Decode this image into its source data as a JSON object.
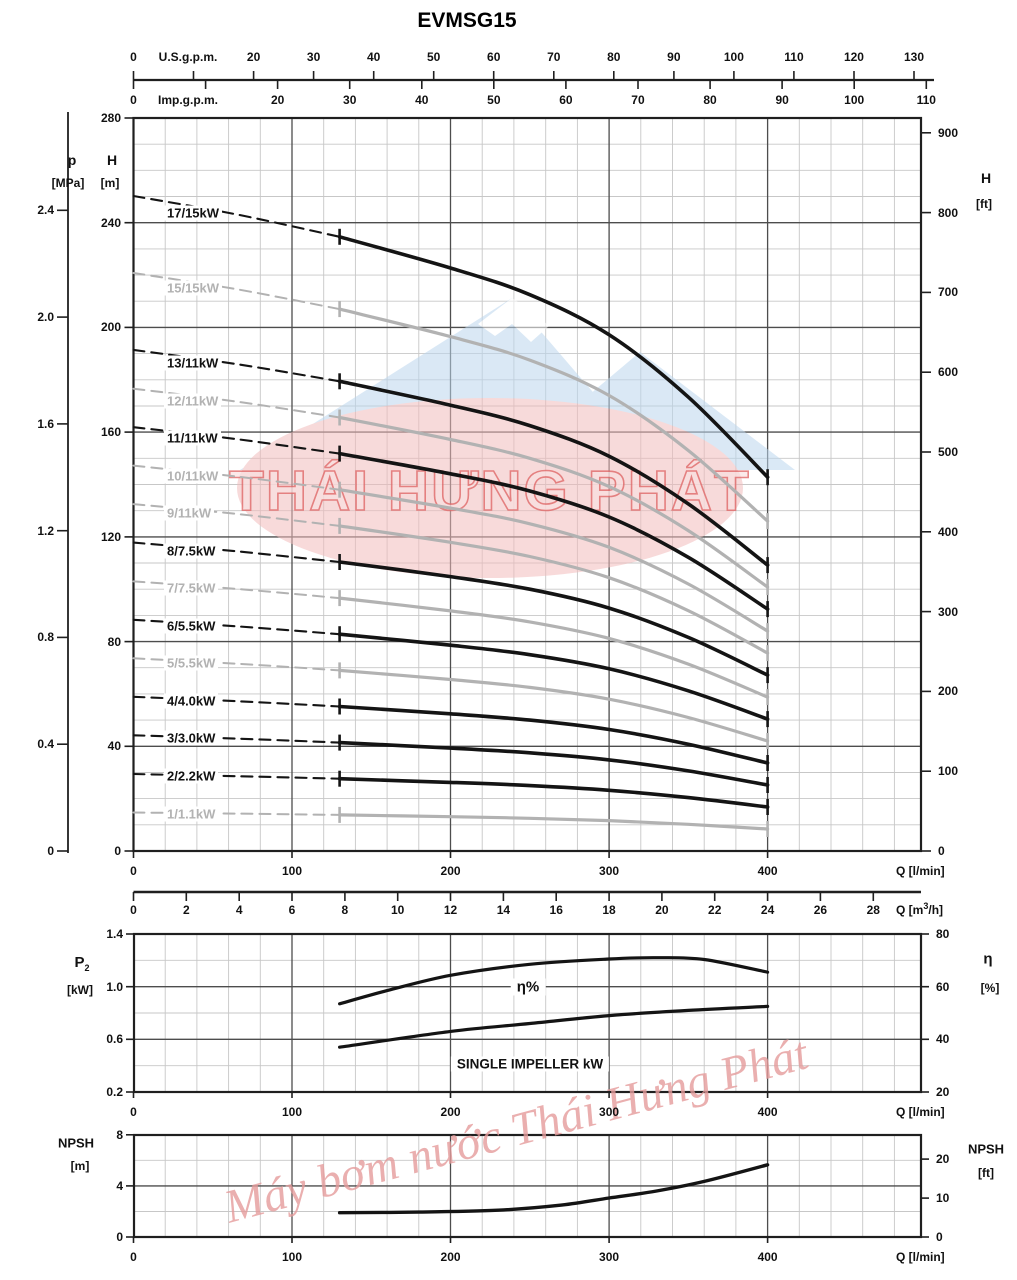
{
  "title": "EVMSG15",
  "axes_labels": {
    "p_sym": "p",
    "p_unit": "[MPa]",
    "h_left_sym": "H",
    "h_left_unit": "[m]",
    "h_right_sym": "H",
    "h_right_unit": "[ft]",
    "p2_sym": "P",
    "p2_sub": "2",
    "p2_unit": "[kW]",
    "eta_sym": "η",
    "eta_unit": "[%]",
    "npsh_left_sym": "NPSH",
    "npsh_left_unit": "[m]",
    "npsh_right_sym": "NPSH",
    "npsh_right_unit": "[ft]",
    "q_lmin": "Q [l/min]",
    "q_m3h_pre": "Q [m",
    "q_m3h_sup": "3",
    "q_m3h_post": "/h]",
    "usgpm": "U.S.g.p.m.",
    "impgpm": "Imp.g.p.m."
  },
  "in_chart_labels": {
    "eta_pct": "η%",
    "single_impeller": "SINGLE IMPELLER kW"
  },
  "watermark": {
    "band_text": "THÁI HUNG PHÁT",
    "band_text_display": "THÁI HƯNG PHÁT",
    "script_text": "Máy bơm nước Thái Hưng Phát"
  },
  "colors": {
    "black_curve": "#141414",
    "gray_curve": "#b2b2b2",
    "grid_minor": "#c7c7c7",
    "grid_major": "#4d4d4d",
    "border": "#1f1f1f",
    "wm_pink": "#f2bcbc",
    "wm_blue": "#bcd7ee",
    "wm_text_stroke": "#e06a6a",
    "wm_text_fill": "#f9e0e0",
    "wm_script": "#e59c9c"
  },
  "chart_data": [
    {
      "id": "head-flow-curves",
      "type": "line",
      "title": "EVMSG15",
      "x_axis": {
        "label": "Q [l/min]",
        "major_ticks": [
          0,
          100,
          200,
          300,
          400
        ],
        "minor_step_lmin": 20,
        "range": [
          0,
          497
        ]
      },
      "x_axis_m3h": {
        "label": "Q [m3/h]",
        "ticks": [
          0,
          2,
          4,
          6,
          8,
          10,
          12,
          14,
          16,
          18,
          20,
          22,
          24,
          26,
          28
        ]
      },
      "x_axis_usgpm": {
        "label": "U.S.g.p.m.",
        "labeled_ticks": [
          0,
          20,
          30,
          40,
          50,
          60,
          70,
          80,
          90,
          100,
          110,
          120,
          130
        ],
        "tick_step": 10
      },
      "x_axis_impgpm": {
        "label": "Imp.g.p.m.",
        "labeled_ticks": [
          0,
          20,
          30,
          40,
          50,
          60,
          70,
          80,
          90,
          100,
          110
        ],
        "tick_step": 10
      },
      "y_axis_H_m": {
        "label": "H [m]",
        "ticks": [
          280,
          240,
          200,
          160,
          120,
          80,
          40,
          0
        ],
        "range": [
          0,
          280
        ],
        "minor_step": 10
      },
      "y_axis_p_MPa": {
        "label": "p [MPa]",
        "ticks": [
          "2.4",
          "2.0",
          "1.6",
          "1.2",
          "0.8",
          "0.4",
          "0"
        ]
      },
      "y_axis_H_ft": {
        "label": "H [ft]",
        "ticks": [
          900,
          800,
          700,
          600,
          500,
          400,
          300,
          200,
          100,
          0
        ]
      },
      "q_points": [
        0,
        130,
        200,
        250,
        300,
        350,
        400
      ],
      "solid_from_q": 130,
      "series": [
        {
          "label": "17/15kW",
          "stages": 17,
          "color": "black",
          "H_m": [
            250.2,
            234.6,
            222.7,
            212.5,
            197.2,
            173.4,
            142.8
          ]
        },
        {
          "label": "15/15kW",
          "stages": 15,
          "color": "gray",
          "H_m": [
            220.8,
            207.0,
            196.5,
            187.5,
            174.0,
            153.0,
            126.0
          ]
        },
        {
          "label": "13/11kW",
          "stages": 13,
          "color": "black",
          "H_m": [
            191.4,
            179.4,
            170.3,
            162.5,
            150.8,
            132.6,
            109.2
          ]
        },
        {
          "label": "12/11kW",
          "stages": 12,
          "color": "gray",
          "H_m": [
            176.6,
            165.6,
            157.2,
            150.0,
            139.2,
            122.4,
            100.8
          ]
        },
        {
          "label": "11/11kW",
          "stages": 11,
          "color": "black",
          "H_m": [
            161.9,
            151.8,
            144.1,
            137.5,
            127.6,
            112.2,
            92.4
          ]
        },
        {
          "label": "10/11kW",
          "stages": 10,
          "color": "gray",
          "H_m": [
            147.2,
            138.0,
            131.0,
            125.0,
            116.0,
            102.0,
            84.0
          ]
        },
        {
          "label": "9/11kW",
          "stages": 9,
          "color": "gray",
          "H_m": [
            132.5,
            124.2,
            117.9,
            112.5,
            104.4,
            91.8,
            75.6
          ]
        },
        {
          "label": "8/7.5kW",
          "stages": 8,
          "color": "black",
          "H_m": [
            117.8,
            110.4,
            104.8,
            100.0,
            92.8,
            81.6,
            67.2
          ]
        },
        {
          "label": "7/7.5kW",
          "stages": 7,
          "color": "gray",
          "H_m": [
            103.0,
            96.6,
            91.7,
            87.5,
            81.2,
            71.4,
            58.8
          ]
        },
        {
          "label": "6/5.5kW",
          "stages": 6,
          "color": "black",
          "H_m": [
            88.3,
            82.8,
            78.6,
            75.0,
            69.6,
            61.2,
            50.4
          ]
        },
        {
          "label": "5/5.5kW",
          "stages": 5,
          "color": "gray",
          "H_m": [
            73.6,
            69.0,
            65.5,
            62.5,
            58.0,
            51.0,
            42.0
          ]
        },
        {
          "label": "4/4.0kW",
          "stages": 4,
          "color": "black",
          "H_m": [
            58.9,
            55.2,
            52.4,
            50.0,
            46.4,
            40.8,
            33.6
          ]
        },
        {
          "label": "3/3.0kW",
          "stages": 3,
          "color": "black",
          "H_m": [
            44.2,
            41.4,
            39.3,
            37.5,
            34.8,
            30.6,
            25.2
          ]
        },
        {
          "label": "2/2.2kW",
          "stages": 2,
          "color": "black",
          "H_m": [
            29.4,
            27.6,
            26.2,
            25.0,
            23.2,
            20.4,
            16.8
          ]
        },
        {
          "label": "1/1.1kW",
          "stages": 1,
          "color": "gray",
          "H_m": [
            14.7,
            13.8,
            13.1,
            12.5,
            11.6,
            10.2,
            8.4
          ]
        }
      ]
    },
    {
      "id": "power-efficiency",
      "type": "line",
      "y_axis_P2_kW": {
        "label": "P2 [kW]",
        "ticks": [
          "1.4",
          "1.0",
          "0.6",
          "0.2"
        ]
      },
      "y_axis_eta_pct": {
        "label": "η [%]",
        "ticks": [
          80,
          60,
          40,
          20
        ]
      },
      "x_axis": {
        "label": "Q [l/min]",
        "major_ticks": [
          0,
          100,
          200,
          300,
          400
        ],
        "minor_step_lmin": 20
      },
      "series": [
        {
          "name": "η%",
          "axis": "eta",
          "q": [
            130,
            160,
            200,
            250,
            300,
            330,
            360,
            400
          ],
          "values": [
            53.5,
            58.5,
            64.3,
            68.5,
            70.5,
            71.0,
            70.3,
            65.5
          ]
        },
        {
          "name": "SINGLE IMPELLER kW",
          "axis": "P2_kW",
          "q": [
            130,
            200,
            250,
            300,
            350,
            400
          ],
          "values": [
            0.54,
            0.66,
            0.72,
            0.78,
            0.82,
            0.85
          ]
        }
      ]
    },
    {
      "id": "npsh",
      "type": "line",
      "y_axis_NPSH_m": {
        "label": "NPSH [m]",
        "ticks": [
          8,
          4,
          0
        ]
      },
      "y_axis_NPSH_ft": {
        "label": "NPSH [ft]",
        "ticks": [
          20,
          10,
          0
        ]
      },
      "x_axis": {
        "label": "Q [l/min]",
        "major_ticks": [
          0,
          100,
          200,
          300,
          400
        ],
        "minor_step_lmin": 20
      },
      "series": [
        {
          "name": "NPSH",
          "q": [
            130,
            180,
            230,
            270,
            300,
            330,
            360,
            400
          ],
          "values": [
            1.9,
            1.95,
            2.1,
            2.5,
            3.05,
            3.6,
            4.35,
            5.65
          ]
        }
      ]
    }
  ]
}
